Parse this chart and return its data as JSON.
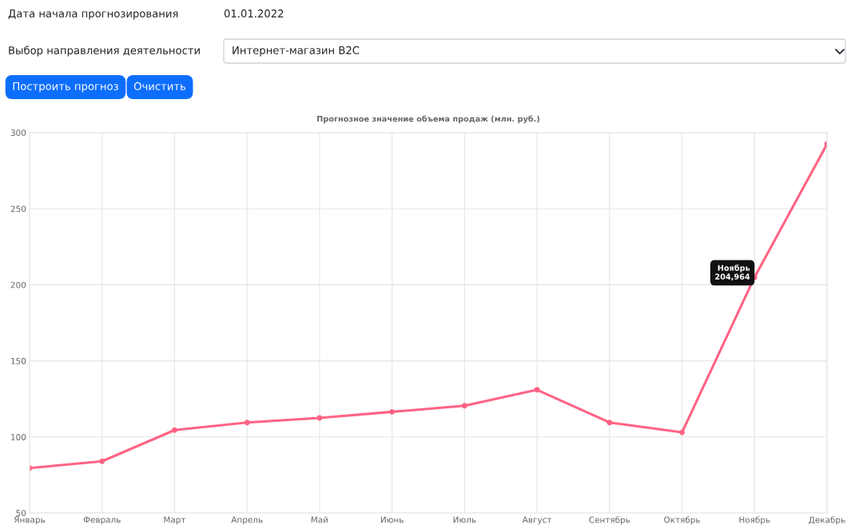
{
  "chart_data": {
    "type": "line",
    "title": "Прогнозное значение объема продаж (млн. руб.)",
    "categories": [
      "Январь",
      "Февраль",
      "Март",
      "Апрель",
      "Май",
      "Июнь",
      "Июль",
      "Август",
      "Сентябрь",
      "Октябрь",
      "Ноябрь",
      "Декабрь"
    ],
    "series": [
      {
        "color": "#ff6384",
        "values": [
          79.5,
          84,
          104.5,
          109.5,
          112.5,
          116.5,
          120.5,
          131,
          109.5,
          103,
          204.964,
          292.5
        ]
      }
    ],
    "ylim": [
      50,
      300
    ],
    "yticks": [
      50,
      100,
      150,
      200,
      250,
      300
    ],
    "grid": true,
    "marker": "circle",
    "line_style": "solid",
    "annotations": [
      "Дата начала прогнозирования",
      "01.01.2022",
      "Выбор направления деятельности",
      "Интернет-магазин B2C",
      "Построить прогноз",
      "Очистить",
      {
        "text": "Ноябрь\n204,964",
        "x": "Ноябрь",
        "y": 204.964
      }
    ]
  }
}
